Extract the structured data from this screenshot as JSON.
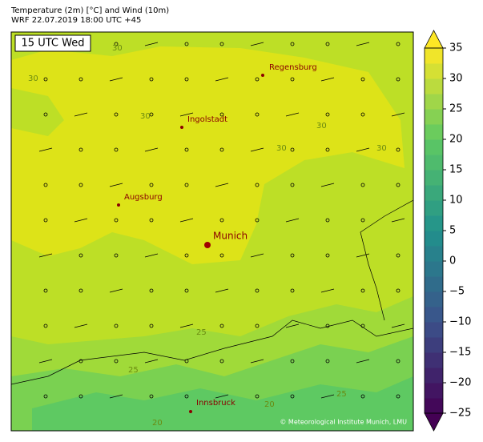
{
  "header": {
    "title": "Temperature (2m) [°C] and Wind (10m)",
    "subtitle": "WRF 22.07.2019 18:00 UTC +45"
  },
  "map": {
    "time_label": "15 UTC Wed",
    "cities": [
      "Regensburg",
      "Ingolstadt",
      "Augsburg",
      "Munich",
      "Innsbruck"
    ],
    "contour_labels": [
      "30",
      "30",
      "30",
      "30",
      "30",
      "30",
      "25",
      "25",
      "25",
      "20",
      "20"
    ],
    "credit": "© Meteorological Institute Munich, LMU"
  },
  "colorbar": {
    "lim": [
      -25,
      35
    ],
    "ticks": [
      35,
      30,
      25,
      20,
      15,
      10,
      5,
      0,
      {
        "value": -5,
        "label": "−5"
      },
      {
        "value": -10,
        "label": "−10"
      },
      {
        "value": -15,
        "label": "−15"
      },
      {
        "value": -20,
        "label": "−20"
      },
      {
        "value": -25,
        "label": "−25"
      }
    ]
  }
}
